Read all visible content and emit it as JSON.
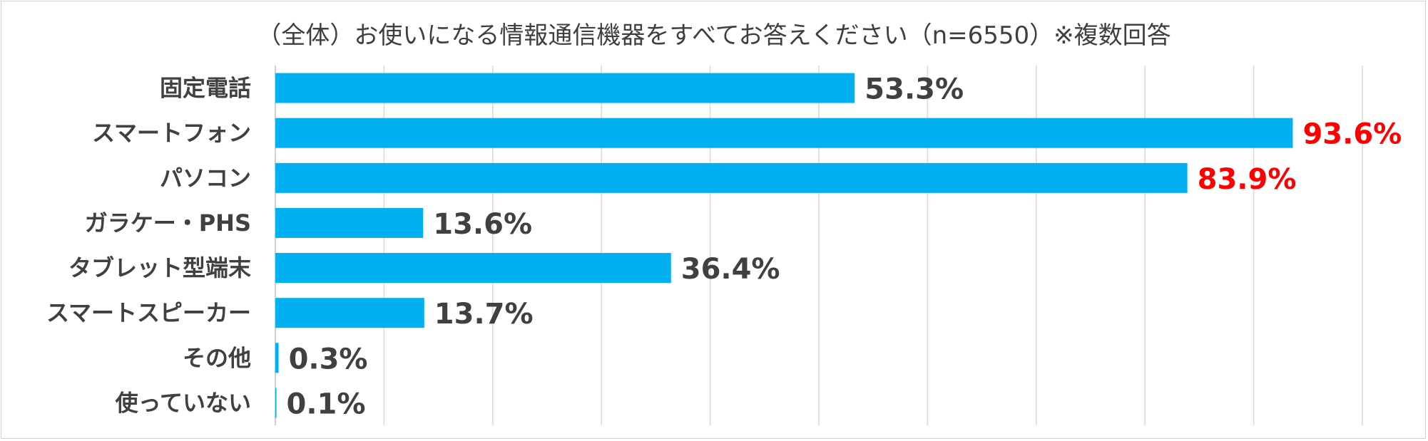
{
  "chart_data": {
    "type": "bar",
    "orientation": "horizontal",
    "title": "（全体）お使いになる情報通信機器をすべてお答えください（n=6550）※複数回答",
    "categories": [
      "固定電話",
      "スマートフォン",
      "パソコン",
      "ガラケー・PHS",
      "タブレット型端末",
      "スマートスピーカー",
      "その他",
      "使っていない"
    ],
    "values": [
      53.3,
      93.6,
      83.9,
      13.6,
      36.4,
      13.7,
      0.3,
      0.1
    ],
    "value_labels": [
      "53.3%",
      "93.6%",
      "83.9%",
      "13.6%",
      "36.4%",
      "13.7%",
      "0.3%",
      "0.1%"
    ],
    "highlight_indices": [
      1,
      2
    ],
    "xlim": [
      0,
      100
    ],
    "grid": true,
    "legend": "none",
    "colors": {
      "bar": "#00b0f0",
      "label": "#404040",
      "highlight_label": "#ff0000",
      "grid": "#d9d9d9"
    }
  }
}
